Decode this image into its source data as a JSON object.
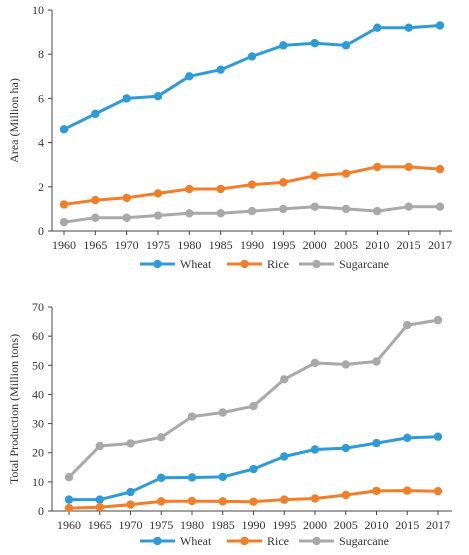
{
  "chart_data": [
    {
      "type": "line",
      "ylabel": "Area (Million ha)",
      "xlabel": "",
      "x": [
        "1960",
        "1965",
        "1970",
        "1975",
        "1980",
        "1985",
        "1990",
        "1995",
        "2000",
        "2005",
        "2010",
        "2015",
        "2017"
      ],
      "ylim": [
        0,
        10
      ],
      "yticks": [
        "0",
        "2",
        "4",
        "6",
        "8",
        "10"
      ],
      "grid": false,
      "legend": "bottom",
      "series": [
        {
          "name": "Wheat",
          "color": "#2E9BD6",
          "values": [
            4.6,
            5.3,
            6.0,
            6.1,
            7.0,
            7.3,
            7.9,
            8.4,
            8.5,
            8.4,
            9.2,
            9.2,
            9.3
          ]
        },
        {
          "name": "Rice",
          "color": "#F07F2A",
          "values": [
            1.2,
            1.4,
            1.5,
            1.7,
            1.9,
            1.9,
            2.1,
            2.2,
            2.5,
            2.6,
            2.9,
            2.9,
            2.8
          ]
        },
        {
          "name": "Sugarcane",
          "color": "#A9A9A9",
          "values": [
            0.4,
            0.6,
            0.6,
            0.7,
            0.8,
            0.8,
            0.9,
            1.0,
            1.1,
            1.0,
            0.9,
            1.1,
            1.1
          ]
        }
      ]
    },
    {
      "type": "line",
      "ylabel": "Total Production (Million tons)",
      "xlabel": "",
      "x": [
        "1960",
        "1965",
        "1970",
        "1975",
        "1980",
        "1985",
        "1990",
        "1995",
        "2000",
        "2005",
        "2010",
        "2015",
        "2017"
      ],
      "ylim": [
        0,
        70
      ],
      "yticks": [
        "0",
        "10",
        "20",
        "30",
        "40",
        "50",
        "60",
        "70"
      ],
      "grid": false,
      "legend": "bottom",
      "series": [
        {
          "name": "Wheat",
          "color": "#2E9BD6",
          "values": [
            3.9,
            3.9,
            6.5,
            11.4,
            11.5,
            11.7,
            14.4,
            18.7,
            21.1,
            21.6,
            23.3,
            25.1,
            25.5
          ]
        },
        {
          "name": "Rice",
          "color": "#F07F2A",
          "values": [
            1.0,
            1.3,
            2.2,
            3.3,
            3.4,
            3.3,
            3.2,
            3.9,
            4.3,
            5.5,
            6.9,
            7.0,
            6.8
          ]
        },
        {
          "name": "Sugarcane",
          "color": "#A9A9A9",
          "values": [
            11.6,
            22.3,
            23.2,
            25.3,
            32.4,
            33.8,
            36.0,
            45.2,
            50.8,
            50.3,
            51.3,
            63.8,
            65.5
          ]
        }
      ]
    }
  ]
}
